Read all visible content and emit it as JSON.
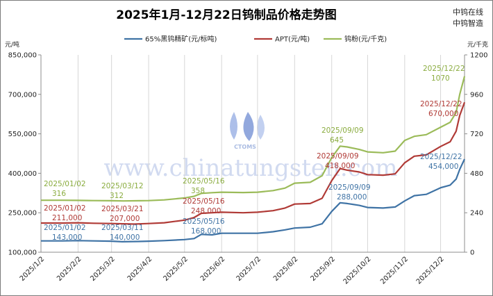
{
  "chart_data": {
    "type": "line",
    "title": "2025年1月-12月22日钨制品价格走势图",
    "brand": [
      "中钨在线",
      "中钨智造"
    ],
    "watermark": {
      "url": "www.chinatungsten.com",
      "logo": "CTOMS"
    },
    "left_axis": {
      "unit": "元/吨",
      "range": [
        100000,
        850000
      ],
      "ticks": [
        "100,000",
        "250,000",
        "400,000",
        "550,000",
        "700,000",
        "850,000"
      ]
    },
    "right_axis": {
      "unit": "元/千克",
      "range": [
        0,
        1200
      ],
      "ticks": [
        "0",
        "240",
        "480",
        "720",
        "960",
        "1200"
      ]
    },
    "x_categories": [
      "2025/1/2",
      "2025/2/2",
      "2025/3/2",
      "2025/4/2",
      "2025/5/2",
      "2025/6/2",
      "2025/7/2",
      "2025/8/2",
      "2025/9/2",
      "2025/10/2",
      "2025/11/2",
      "2025/12/2"
    ],
    "series": [
      {
        "name": "65%黑钨精矿(元/标吨)",
        "color": "#3f73a5",
        "axis": "left",
        "points": [
          [
            "2025/1/2",
            143000
          ],
          [
            "2025/1/20",
            143000
          ],
          [
            "2025/2/2",
            144000
          ],
          [
            "2025/2/15",
            143000
          ],
          [
            "2025/3/2",
            142000
          ],
          [
            "2025/3/11",
            140000
          ],
          [
            "2025/3/25",
            141000
          ],
          [
            "2025/4/2",
            142000
          ],
          [
            "2025/4/15",
            144000
          ],
          [
            "2025/5/2",
            148000
          ],
          [
            "2025/5/10",
            152000
          ],
          [
            "2025/5/16",
            168000
          ],
          [
            "2025/5/25",
            166000
          ],
          [
            "2025/6/2",
            172000
          ],
          [
            "2025/6/20",
            172000
          ],
          [
            "2025/7/2",
            172000
          ],
          [
            "2025/7/15",
            178000
          ],
          [
            "2025/7/25",
            185000
          ],
          [
            "2025/8/2",
            192000
          ],
          [
            "2025/8/15",
            195000
          ],
          [
            "2025/8/25",
            208000
          ],
          [
            "2025/9/2",
            255000
          ],
          [
            "2025/9/9",
            288000
          ],
          [
            "2025/9/15",
            285000
          ],
          [
            "2025/9/25",
            278000
          ],
          [
            "2025/10/2",
            270000
          ],
          [
            "2025/10/15",
            268000
          ],
          [
            "2025/10/25",
            272000
          ],
          [
            "2025/11/2",
            295000
          ],
          [
            "2025/11/10",
            315000
          ],
          [
            "2025/11/20",
            320000
          ],
          [
            "2025/12/2",
            345000
          ],
          [
            "2025/12/10",
            355000
          ],
          [
            "2025/12/15",
            378000
          ],
          [
            "2025/12/18",
            415000
          ],
          [
            "2025/12/22",
            454000
          ]
        ]
      },
      {
        "name": "APT(元/吨)",
        "color": "#b03a36",
        "axis": "left",
        "points": [
          [
            "2025/1/2",
            211000
          ],
          [
            "2025/1/20",
            211000
          ],
          [
            "2025/2/2",
            212000
          ],
          [
            "2025/2/15",
            210000
          ],
          [
            "2025/3/2",
            209000
          ],
          [
            "2025/3/21",
            207000
          ],
          [
            "2025/4/2",
            209000
          ],
          [
            "2025/4/15",
            212000
          ],
          [
            "2025/5/2",
            222000
          ],
          [
            "2025/5/10",
            232000
          ],
          [
            "2025/5/16",
            248000
          ],
          [
            "2025/5/25",
            250000
          ],
          [
            "2025/6/2",
            252000
          ],
          [
            "2025/6/20",
            250000
          ],
          [
            "2025/7/2",
            252000
          ],
          [
            "2025/7/15",
            258000
          ],
          [
            "2025/7/25",
            268000
          ],
          [
            "2025/8/2",
            283000
          ],
          [
            "2025/8/15",
            285000
          ],
          [
            "2025/8/25",
            305000
          ],
          [
            "2025/9/2",
            372000
          ],
          [
            "2025/9/9",
            418000
          ],
          [
            "2025/9/15",
            412000
          ],
          [
            "2025/9/25",
            405000
          ],
          [
            "2025/10/2",
            395000
          ],
          [
            "2025/10/15",
            393000
          ],
          [
            "2025/10/25",
            398000
          ],
          [
            "2025/11/2",
            440000
          ],
          [
            "2025/11/10",
            465000
          ],
          [
            "2025/11/20",
            470000
          ],
          [
            "2025/12/2",
            502000
          ],
          [
            "2025/12/10",
            520000
          ],
          [
            "2025/12/15",
            560000
          ],
          [
            "2025/12/18",
            620000
          ],
          [
            "2025/12/22",
            670000
          ]
        ]
      },
      {
        "name": "钨粉(元/千克)",
        "color": "#9bbb59",
        "axis": "right",
        "points": [
          [
            "2025/1/2",
            316
          ],
          [
            "2025/1/20",
            316
          ],
          [
            "2025/2/2",
            315
          ],
          [
            "2025/2/15",
            314
          ],
          [
            "2025/3/2",
            313
          ],
          [
            "2025/3/12",
            312
          ],
          [
            "2025/3/25",
            313
          ],
          [
            "2025/4/2",
            314
          ],
          [
            "2025/4/15",
            318
          ],
          [
            "2025/5/2",
            330
          ],
          [
            "2025/5/10",
            340
          ],
          [
            "2025/5/16",
            358
          ],
          [
            "2025/5/25",
            362
          ],
          [
            "2025/6/2",
            365
          ],
          [
            "2025/6/20",
            363
          ],
          [
            "2025/7/2",
            365
          ],
          [
            "2025/7/15",
            375
          ],
          [
            "2025/7/25",
            390
          ],
          [
            "2025/8/2",
            420
          ],
          [
            "2025/8/15",
            425
          ],
          [
            "2025/8/25",
            465
          ],
          [
            "2025/9/2",
            575
          ],
          [
            "2025/9/9",
            645
          ],
          [
            "2025/9/15",
            640
          ],
          [
            "2025/9/25",
            625
          ],
          [
            "2025/10/2",
            610
          ],
          [
            "2025/10/15",
            605
          ],
          [
            "2025/10/25",
            615
          ],
          [
            "2025/11/2",
            680
          ],
          [
            "2025/11/10",
            705
          ],
          [
            "2025/11/20",
            715
          ],
          [
            "2025/12/2",
            760
          ],
          [
            "2025/12/10",
            790
          ],
          [
            "2025/12/15",
            850
          ],
          [
            "2025/12/18",
            960
          ],
          [
            "2025/12/22",
            1070
          ]
        ]
      }
    ],
    "annotations": [
      {
        "series": 0,
        "lines": [
          "2025/01/02",
          "143,000"
        ],
        "color": "#3f73a5"
      },
      {
        "series": 0,
        "lines": [
          "2025/03/11",
          "140,000"
        ],
        "color": "#3f73a5"
      },
      {
        "series": 0,
        "lines": [
          "2025/05/16",
          "168,000"
        ],
        "color": "#3f73a5"
      },
      {
        "series": 0,
        "lines": [
          "2025/09/09",
          "288,000"
        ],
        "color": "#3f73a5"
      },
      {
        "series": 0,
        "lines": [
          "2025/12/22",
          "454,000"
        ],
        "color": "#3f73a5"
      },
      {
        "series": 1,
        "lines": [
          "2025/01/02",
          "211,000"
        ],
        "color": "#b03a36"
      },
      {
        "series": 1,
        "lines": [
          "2025/03/21",
          "207,000"
        ],
        "color": "#b03a36"
      },
      {
        "series": 1,
        "lines": [
          "2025/05/16",
          "248,000"
        ],
        "color": "#b03a36"
      },
      {
        "series": 1,
        "lines": [
          "2025/09/09",
          "418,000"
        ],
        "color": "#b03a36"
      },
      {
        "series": 1,
        "lines": [
          "2025/12/22",
          "670,000"
        ],
        "color": "#b03a36"
      },
      {
        "series": 2,
        "lines": [
          "2025/01/02",
          "316"
        ],
        "color": "#8aac3f"
      },
      {
        "series": 2,
        "lines": [
          "2025/03/12",
          "312"
        ],
        "color": "#8aac3f"
      },
      {
        "series": 2,
        "lines": [
          "2025/05/16",
          "358"
        ],
        "color": "#8aac3f"
      },
      {
        "series": 2,
        "lines": [
          "2025/09/09",
          "645"
        ],
        "color": "#8aac3f"
      },
      {
        "series": 2,
        "lines": [
          "2025/12/22",
          "1070"
        ],
        "color": "#8aac3f"
      }
    ],
    "grid": "vertical",
    "legend_placement": "top"
  }
}
